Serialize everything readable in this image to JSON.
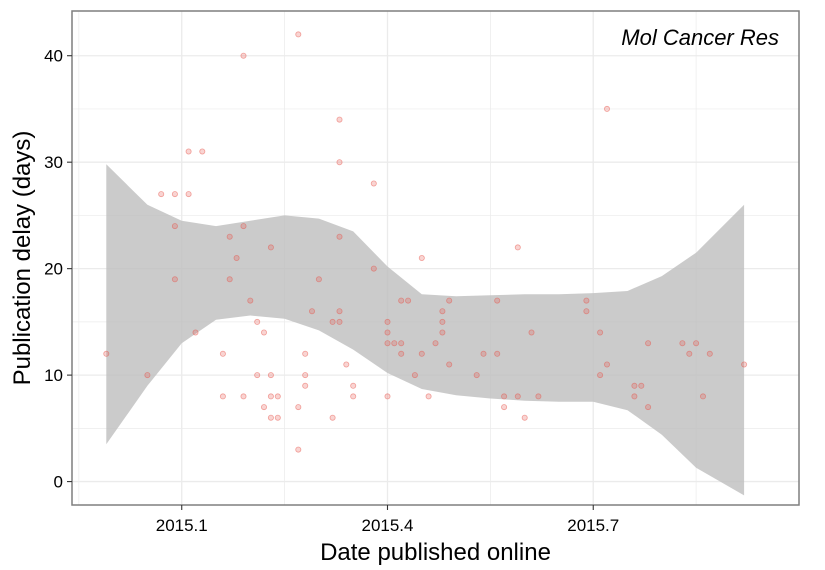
{
  "chart_data": {
    "type": "scatter",
    "title": "Mol Cancer Res",
    "xlabel": "Date published online",
    "ylabel": "Publication delay (days)",
    "xlim": [
      2014.94,
      2016.0
    ],
    "ylim": [
      -2.2,
      44.2
    ],
    "x_ticks": [
      2015.1,
      2015.4,
      2015.7
    ],
    "x_tick_labels": [
      "2015.1",
      "2015.4",
      "2015.7"
    ],
    "y_ticks": [
      0,
      10,
      20,
      30,
      40
    ],
    "y_tick_labels": [
      "0",
      "10",
      "20",
      "30",
      "40"
    ],
    "grid": true,
    "legend": "none",
    "colors": {
      "points": "#e8534a",
      "ribbon": "#bebebe",
      "grid": "#ebebeb",
      "border": "#7f7f7f"
    },
    "points": [
      {
        "x": 2014.99,
        "y": 12
      },
      {
        "x": 2015.05,
        "y": 10
      },
      {
        "x": 2015.07,
        "y": 27
      },
      {
        "x": 2015.09,
        "y": 27
      },
      {
        "x": 2015.09,
        "y": 24
      },
      {
        "x": 2015.09,
        "y": 19
      },
      {
        "x": 2015.11,
        "y": 31
      },
      {
        "x": 2015.11,
        "y": 27
      },
      {
        "x": 2015.13,
        "y": 31
      },
      {
        "x": 2015.12,
        "y": 14
      },
      {
        "x": 2015.16,
        "y": 12
      },
      {
        "x": 2015.16,
        "y": 8
      },
      {
        "x": 2015.17,
        "y": 23
      },
      {
        "x": 2015.17,
        "y": 19
      },
      {
        "x": 2015.18,
        "y": 21
      },
      {
        "x": 2015.19,
        "y": 40
      },
      {
        "x": 2015.19,
        "y": 24
      },
      {
        "x": 2015.19,
        "y": 8
      },
      {
        "x": 2015.2,
        "y": 17
      },
      {
        "x": 2015.21,
        "y": 15
      },
      {
        "x": 2015.21,
        "y": 10
      },
      {
        "x": 2015.22,
        "y": 14
      },
      {
        "x": 2015.22,
        "y": 7
      },
      {
        "x": 2015.23,
        "y": 22
      },
      {
        "x": 2015.23,
        "y": 10
      },
      {
        "x": 2015.23,
        "y": 8
      },
      {
        "x": 2015.23,
        "y": 6
      },
      {
        "x": 2015.24,
        "y": 8
      },
      {
        "x": 2015.24,
        "y": 6
      },
      {
        "x": 2015.27,
        "y": 42
      },
      {
        "x": 2015.27,
        "y": 7
      },
      {
        "x": 2015.27,
        "y": 3
      },
      {
        "x": 2015.28,
        "y": 12
      },
      {
        "x": 2015.28,
        "y": 10
      },
      {
        "x": 2015.28,
        "y": 9
      },
      {
        "x": 2015.29,
        "y": 16
      },
      {
        "x": 2015.3,
        "y": 19
      },
      {
        "x": 2015.32,
        "y": 15
      },
      {
        "x": 2015.32,
        "y": 6
      },
      {
        "x": 2015.33,
        "y": 34
      },
      {
        "x": 2015.33,
        "y": 30
      },
      {
        "x": 2015.33,
        "y": 23
      },
      {
        "x": 2015.33,
        "y": 16
      },
      {
        "x": 2015.33,
        "y": 15
      },
      {
        "x": 2015.34,
        "y": 11
      },
      {
        "x": 2015.35,
        "y": 8
      },
      {
        "x": 2015.35,
        "y": 9
      },
      {
        "x": 2015.38,
        "y": 28
      },
      {
        "x": 2015.38,
        "y": 20
      },
      {
        "x": 2015.4,
        "y": 15
      },
      {
        "x": 2015.4,
        "y": 14
      },
      {
        "x": 2015.4,
        "y": 13
      },
      {
        "x": 2015.4,
        "y": 8
      },
      {
        "x": 2015.41,
        "y": 13
      },
      {
        "x": 2015.42,
        "y": 13
      },
      {
        "x": 2015.42,
        "y": 17
      },
      {
        "x": 2015.42,
        "y": 12
      },
      {
        "x": 2015.43,
        "y": 17
      },
      {
        "x": 2015.44,
        "y": 10
      },
      {
        "x": 2015.45,
        "y": 21
      },
      {
        "x": 2015.45,
        "y": 12
      },
      {
        "x": 2015.46,
        "y": 8
      },
      {
        "x": 2015.47,
        "y": 13
      },
      {
        "x": 2015.48,
        "y": 16
      },
      {
        "x": 2015.48,
        "y": 15
      },
      {
        "x": 2015.48,
        "y": 14
      },
      {
        "x": 2015.49,
        "y": 17
      },
      {
        "x": 2015.49,
        "y": 11
      },
      {
        "x": 2015.53,
        "y": 10
      },
      {
        "x": 2015.54,
        "y": 12
      },
      {
        "x": 2015.56,
        "y": 17
      },
      {
        "x": 2015.56,
        "y": 12
      },
      {
        "x": 2015.57,
        "y": 8
      },
      {
        "x": 2015.57,
        "y": 7
      },
      {
        "x": 2015.59,
        "y": 22
      },
      {
        "x": 2015.59,
        "y": 8
      },
      {
        "x": 2015.6,
        "y": 6
      },
      {
        "x": 2015.61,
        "y": 14
      },
      {
        "x": 2015.62,
        "y": 8
      },
      {
        "x": 2015.69,
        "y": 17
      },
      {
        "x": 2015.69,
        "y": 16
      },
      {
        "x": 2015.71,
        "y": 14
      },
      {
        "x": 2015.71,
        "y": 10
      },
      {
        "x": 2015.72,
        "y": 35
      },
      {
        "x": 2015.72,
        "y": 11
      },
      {
        "x": 2015.76,
        "y": 9
      },
      {
        "x": 2015.76,
        "y": 8
      },
      {
        "x": 2015.77,
        "y": 9
      },
      {
        "x": 2015.78,
        "y": 13
      },
      {
        "x": 2015.78,
        "y": 7
      },
      {
        "x": 2015.83,
        "y": 13
      },
      {
        "x": 2015.84,
        "y": 12
      },
      {
        "x": 2015.85,
        "y": 13
      },
      {
        "x": 2015.86,
        "y": 8
      },
      {
        "x": 2015.87,
        "y": 12
      },
      {
        "x": 2015.92,
        "y": 11
      }
    ],
    "smooth": {
      "x": [
        2014.99,
        2015.05,
        2015.1,
        2015.15,
        2015.2,
        2015.25,
        2015.3,
        2015.35,
        2015.4,
        2015.45,
        2015.5,
        2015.55,
        2015.6,
        2015.65,
        2015.7,
        2015.75,
        2015.8,
        2015.85,
        2015.92
      ],
      "lower": [
        3.5,
        9.0,
        13.0,
        15.2,
        15.6,
        15.3,
        14.2,
        12.4,
        10.2,
        8.7,
        8.1,
        7.8,
        7.6,
        7.5,
        7.5,
        6.7,
        4.4,
        1.3,
        -1.3
      ],
      "upper": [
        29.8,
        26.0,
        24.5,
        24.0,
        24.5,
        25.0,
        24.7,
        23.5,
        20.2,
        17.6,
        17.4,
        17.5,
        17.6,
        17.6,
        17.7,
        17.9,
        19.3,
        21.5,
        26.0
      ]
    }
  }
}
